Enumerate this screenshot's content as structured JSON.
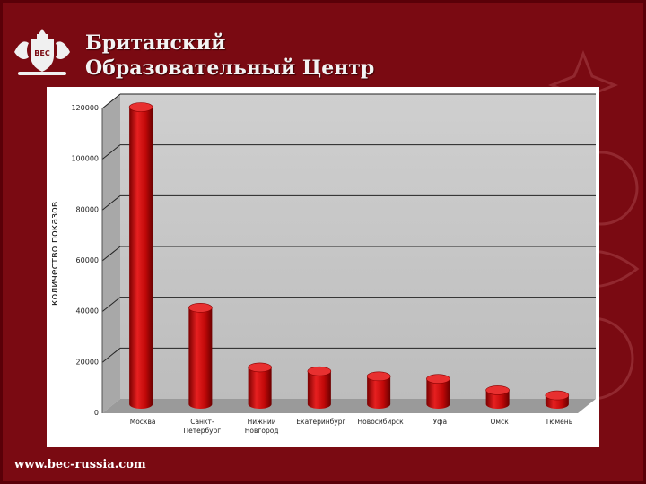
{
  "brand": {
    "title_line1": "Британский",
    "title_line2": "Образовательный Центр",
    "logo_text": "BEC",
    "website": "www.bec-russia.com"
  },
  "colors": {
    "background": "#7a0a12",
    "bar": "#d01010",
    "plot_wall": "#c8c8c8",
    "floor": "#9a9a9a"
  },
  "chart_data": {
    "type": "bar",
    "ylabel": "количество показов",
    "ylim": [
      0,
      120000
    ],
    "yticks": [
      0,
      20000,
      40000,
      60000,
      80000,
      100000,
      120000
    ],
    "ytick_labels": [
      "0",
      "20000",
      "40000",
      "60000",
      "80000",
      "100000",
      "120000"
    ],
    "grid": true,
    "categories": [
      [
        "Москва"
      ],
      [
        "Санкт-",
        "Петербург"
      ],
      [
        "Нижний",
        "Новгород"
      ],
      [
        "Екатеринбург"
      ],
      [
        "Новосибирск"
      ],
      [
        "Уфа"
      ],
      [
        "Омск"
      ],
      [
        "Тюмень"
      ]
    ],
    "values": [
      117000,
      38000,
      14500,
      13000,
      11000,
      10000,
      5500,
      3500
    ]
  }
}
